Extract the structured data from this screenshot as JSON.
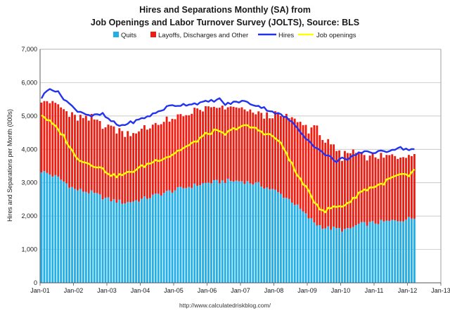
{
  "chart_data": {
    "type": "bar",
    "title": [
      "Hires and Separations Monthly (SA) from",
      "Job Openings and Labor Turnover Survey (JOLTS), Source: BLS"
    ],
    "ylabel": "Hires and Separations per Month (000s)",
    "xlabel": "",
    "ylim": [
      0,
      7000
    ],
    "y_ticks": [
      "0",
      "1,000",
      "2,000",
      "3,000",
      "4,000",
      "5,000",
      "6,000",
      "7,000"
    ],
    "x_ticks": [
      "Jan-01",
      "Jan-02",
      "Jan-03",
      "Jan-04",
      "Jan-05",
      "Jan-06",
      "Jan-07",
      "Jan-08",
      "Jan-09",
      "Jan-10",
      "Jan-11",
      "Jan-12",
      "Jan-13"
    ],
    "start": "Jan-01",
    "legend": {
      "position": "top",
      "quits": "Quits",
      "layoffs": "Layoffs, Discharges and Other",
      "hires": "Hires",
      "openings": "Job openings"
    },
    "colors": {
      "quits": "#22aee6",
      "layoffs": "#ee1c10",
      "hires": "#2233ee",
      "openings": "#ffff00",
      "grid": "#b8b8b8",
      "plot_bg": "#ffffff"
    },
    "source_url": "http://www.calculatedriskblog.com/",
    "series": [
      {
        "name": "Quits",
        "anchors": [
          [
            0,
            3350
          ],
          [
            6,
            3150
          ],
          [
            12,
            2800
          ],
          [
            18,
            2700
          ],
          [
            24,
            2500
          ],
          [
            30,
            2400
          ],
          [
            36,
            2500
          ],
          [
            42,
            2650
          ],
          [
            48,
            2780
          ],
          [
            54,
            2900
          ],
          [
            60,
            3000
          ],
          [
            66,
            3050
          ],
          [
            72,
            3050
          ],
          [
            78,
            2950
          ],
          [
            84,
            2750
          ],
          [
            90,
            2450
          ],
          [
            96,
            1950
          ],
          [
            99,
            1750
          ],
          [
            102,
            1650
          ],
          [
            108,
            1600
          ],
          [
            110,
            1580
          ],
          [
            114,
            1750
          ],
          [
            120,
            1800
          ],
          [
            126,
            1850
          ],
          [
            132,
            1920
          ],
          [
            134,
            1950
          ]
        ]
      },
      {
        "name": "Layoffs, Discharges and Other",
        "anchors": [
          [
            0,
            2200
          ],
          [
            6,
            2150
          ],
          [
            12,
            2150
          ],
          [
            18,
            2200
          ],
          [
            24,
            2200
          ],
          [
            30,
            2100
          ],
          [
            36,
            2050
          ],
          [
            42,
            2150
          ],
          [
            48,
            2100
          ],
          [
            54,
            2250
          ],
          [
            60,
            2200
          ],
          [
            66,
            2200
          ],
          [
            72,
            2150
          ],
          [
            78,
            2100
          ],
          [
            84,
            2250
          ],
          [
            90,
            2500
          ],
          [
            96,
            2650
          ],
          [
            99,
            2900
          ],
          [
            102,
            2600
          ],
          [
            108,
            2150
          ],
          [
            110,
            2350
          ],
          [
            114,
            2150
          ],
          [
            120,
            1950
          ],
          [
            126,
            1950
          ],
          [
            132,
            1950
          ],
          [
            134,
            1900
          ]
        ]
      },
      {
        "name": "Hires",
        "anchors": [
          [
            0,
            5550
          ],
          [
            3,
            5850
          ],
          [
            6,
            5700
          ],
          [
            12,
            5200
          ],
          [
            18,
            5000
          ],
          [
            22,
            5050
          ],
          [
            24,
            4900
          ],
          [
            28,
            4700
          ],
          [
            34,
            4850
          ],
          [
            40,
            5050
          ],
          [
            46,
            5300
          ],
          [
            52,
            5350
          ],
          [
            58,
            5400
          ],
          [
            64,
            5500
          ],
          [
            66,
            5350
          ],
          [
            72,
            5450
          ],
          [
            78,
            5300
          ],
          [
            84,
            5100
          ],
          [
            88,
            4950
          ],
          [
            92,
            4650
          ],
          [
            96,
            4250
          ],
          [
            100,
            3950
          ],
          [
            104,
            3750
          ],
          [
            106,
            3650
          ],
          [
            108,
            3750
          ],
          [
            110,
            3650
          ],
          [
            112,
            3800
          ],
          [
            116,
            3950
          ],
          [
            120,
            3900
          ],
          [
            124,
            3950
          ],
          [
            128,
            4050
          ],
          [
            132,
            4000
          ],
          [
            134,
            4000
          ]
        ]
      },
      {
        "name": "Job openings",
        "anchors": [
          [
            0,
            5050
          ],
          [
            2,
            4900
          ],
          [
            4,
            4750
          ],
          [
            8,
            4400
          ],
          [
            12,
            3800
          ],
          [
            16,
            3600
          ],
          [
            20,
            3500
          ],
          [
            24,
            3300
          ],
          [
            26,
            3200
          ],
          [
            30,
            3250
          ],
          [
            34,
            3400
          ],
          [
            38,
            3550
          ],
          [
            42,
            3700
          ],
          [
            46,
            3800
          ],
          [
            50,
            4000
          ],
          [
            54,
            4150
          ],
          [
            58,
            4400
          ],
          [
            62,
            4550
          ],
          [
            66,
            4450
          ],
          [
            70,
            4650
          ],
          [
            72,
            4700
          ],
          [
            76,
            4650
          ],
          [
            80,
            4500
          ],
          [
            84,
            4350
          ],
          [
            86,
            4150
          ],
          [
            88,
            3900
          ],
          [
            90,
            3550
          ],
          [
            92,
            3200
          ],
          [
            94,
            3000
          ],
          [
            96,
            2700
          ],
          [
            98,
            2450
          ],
          [
            100,
            2250
          ],
          [
            102,
            2150
          ],
          [
            104,
            2250
          ],
          [
            108,
            2300
          ],
          [
            112,
            2500
          ],
          [
            114,
            2700
          ],
          [
            118,
            2850
          ],
          [
            122,
            2950
          ],
          [
            126,
            3150
          ],
          [
            130,
            3250
          ],
          [
            132,
            3150
          ],
          [
            134,
            3400
          ]
        ]
      }
    ]
  }
}
